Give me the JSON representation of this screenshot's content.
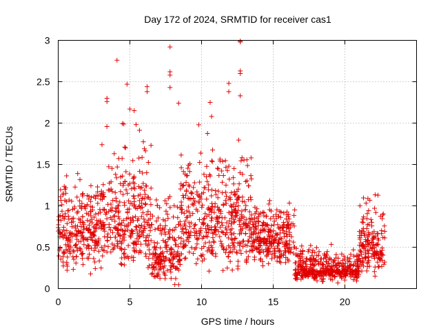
{
  "chart_data": {
    "type": "scatter",
    "title": "Day 172 of 2024, SRMTID for receiver cas1",
    "xlabel": "GPS time / hours",
    "ylabel": "SRMTID / TECUs",
    "xlim": [
      0,
      25
    ],
    "ylim": [
      0,
      3
    ],
    "xticks": [
      0,
      5,
      10,
      15,
      20
    ],
    "xtick_labels": [
      "0",
      "5",
      "10",
      "15",
      "20"
    ],
    "yticks": [
      0,
      0.5,
      1,
      1.5,
      2,
      2.5,
      3
    ],
    "ytick_labels": [
      "0",
      "0.5",
      "1",
      "1.5",
      "2",
      "2.5",
      "3"
    ],
    "grid": true,
    "marker": "plus",
    "color": "#e00000",
    "series": [
      {
        "name": "SRMTID",
        "envelope": [
          {
            "x_start": 0.0,
            "x_end": 3.0,
            "y_low": 0.1,
            "y_high": 1.55,
            "center": 0.7
          },
          {
            "x_start": 3.0,
            "x_end": 6.5,
            "y_low": 0.05,
            "y_high": 2.2,
            "center": 0.8
          },
          {
            "x_start": 6.5,
            "x_end": 8.5,
            "y_low": 0.0,
            "y_high": 1.4,
            "center": 0.4
          },
          {
            "x_start": 8.5,
            "x_end": 13.5,
            "y_low": 0.05,
            "y_high": 2.0,
            "center": 0.8
          },
          {
            "x_start": 13.5,
            "x_end": 16.5,
            "y_low": 0.2,
            "y_high": 1.2,
            "center": 0.6
          },
          {
            "x_start": 16.5,
            "x_end": 21.0,
            "y_low": 0.05,
            "y_high": 0.6,
            "center": 0.22
          },
          {
            "x_start": 21.0,
            "x_end": 22.8,
            "y_low": 0.1,
            "y_high": 1.3,
            "center": 0.5
          }
        ],
        "notable_points": [
          {
            "x": 4.1,
            "y": 2.76
          },
          {
            "x": 4.8,
            "y": 2.47
          },
          {
            "x": 6.2,
            "y": 2.44
          },
          {
            "x": 6.2,
            "y": 2.38
          },
          {
            "x": 3.4,
            "y": 2.3
          },
          {
            "x": 3.4,
            "y": 2.26
          },
          {
            "x": 7.8,
            "y": 2.92
          },
          {
            "x": 7.8,
            "y": 2.62
          },
          {
            "x": 7.8,
            "y": 2.58
          },
          {
            "x": 7.8,
            "y": 2.43
          },
          {
            "x": 8.4,
            "y": 2.24
          },
          {
            "x": 10.6,
            "y": 2.25
          },
          {
            "x": 11.9,
            "y": 2.48
          },
          {
            "x": 11.9,
            "y": 2.38
          },
          {
            "x": 12.7,
            "y": 2.99
          },
          {
            "x": 12.7,
            "y": 2.98
          },
          {
            "x": 12.7,
            "y": 2.63
          },
          {
            "x": 12.7,
            "y": 2.6
          },
          {
            "x": 12.7,
            "y": 2.33
          },
          {
            "x": 5.0,
            "y": 2.17
          },
          {
            "x": 5.3,
            "y": 2.15
          },
          {
            "x": 9.8,
            "y": 1.98
          },
          {
            "x": 10.7,
            "y": 2.08
          }
        ]
      }
    ]
  }
}
